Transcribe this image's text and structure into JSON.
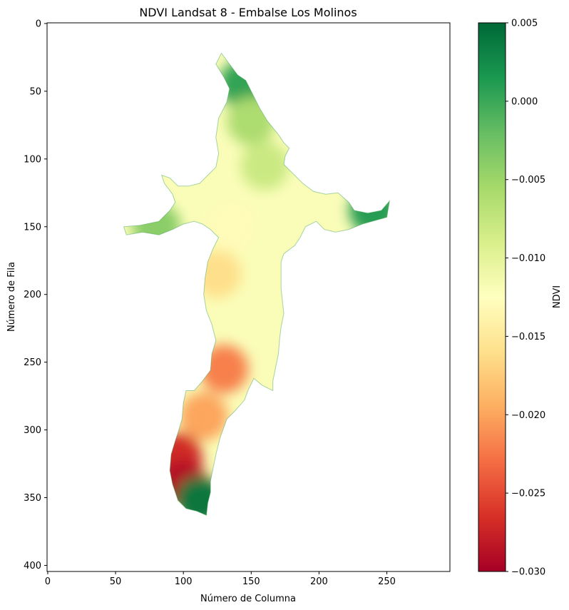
{
  "chart_data": {
    "type": "heatmap",
    "title": "NDVI Landsat 8 - Embalse Los Molinos",
    "xlabel": "Número de Columna",
    "ylabel": "Número de Fila",
    "xlim": [
      -0.5,
      296.5
    ],
    "ylim": [
      404.5,
      -0.5
    ],
    "x_ticks": [
      0,
      50,
      100,
      150,
      200,
      250
    ],
    "y_ticks": [
      0,
      50,
      100,
      150,
      200,
      250,
      300,
      350,
      400
    ],
    "grid": false,
    "colormap": "RdYlGn",
    "colorbar": {
      "label": "NDVI",
      "range": [
        -0.03,
        0.005
      ],
      "ticks": [
        0.005,
        0.0,
        -0.005,
        -0.01,
        -0.015,
        -0.02,
        -0.025,
        -0.03
      ],
      "tick_labels": [
        "0.005",
        "0.000",
        "−0.005",
        "−0.010",
        "−0.015",
        "−0.020",
        "−0.025",
        "−0.030"
      ]
    },
    "colormap_stops": [
      "#a50026",
      "#d73027",
      "#f46d43",
      "#fdae61",
      "#fee08b",
      "#ffffbf",
      "#d9ef8b",
      "#a6d96a",
      "#66bd63",
      "#1a9850",
      "#006837"
    ],
    "water_body_outline": [
      [
        128,
        22
      ],
      [
        134,
        30
      ],
      [
        140,
        38
      ],
      [
        146,
        42
      ],
      [
        150,
        50
      ],
      [
        156,
        62
      ],
      [
        162,
        72
      ],
      [
        170,
        82
      ],
      [
        174,
        88
      ],
      [
        178,
        92
      ],
      [
        175,
        98
      ],
      [
        174,
        104
      ],
      [
        180,
        110
      ],
      [
        188,
        118
      ],
      [
        196,
        124
      ],
      [
        205,
        126
      ],
      [
        214,
        125
      ],
      [
        222,
        132
      ],
      [
        226,
        138
      ],
      [
        236,
        140
      ],
      [
        246,
        138
      ],
      [
        252,
        131
      ],
      [
        250,
        143
      ],
      [
        232,
        148
      ],
      [
        222,
        152
      ],
      [
        212,
        154
      ],
      [
        204,
        152
      ],
      [
        198,
        146
      ],
      [
        190,
        150
      ],
      [
        186,
        158
      ],
      [
        182,
        164
      ],
      [
        174,
        170
      ],
      [
        172,
        176
      ],
      [
        172,
        196
      ],
      [
        174,
        214
      ],
      [
        172,
        224
      ],
      [
        171,
        232
      ],
      [
        170,
        244
      ],
      [
        168,
        254
      ],
      [
        166,
        264
      ],
      [
        166,
        271
      ],
      [
        158,
        267
      ],
      [
        152,
        262
      ],
      [
        148,
        270
      ],
      [
        145,
        278
      ],
      [
        138,
        286
      ],
      [
        132,
        292
      ],
      [
        127,
        306
      ],
      [
        124,
        318
      ],
      [
        122,
        328
      ],
      [
        120,
        338
      ],
      [
        120,
        346
      ],
      [
        118,
        354
      ],
      [
        117,
        363
      ],
      [
        110,
        360
      ],
      [
        102,
        358
      ],
      [
        96,
        352
      ],
      [
        92,
        340
      ],
      [
        90,
        330
      ],
      [
        91,
        318
      ],
      [
        94,
        308
      ],
      [
        96,
        302
      ],
      [
        99,
        292
      ],
      [
        100,
        280
      ],
      [
        102,
        271
      ],
      [
        108,
        271
      ],
      [
        114,
        264
      ],
      [
        120,
        256
      ],
      [
        121,
        244
      ],
      [
        124,
        234
      ],
      [
        121,
        222
      ],
      [
        117,
        212
      ],
      [
        115,
        200
      ],
      [
        116,
        188
      ],
      [
        118,
        176
      ],
      [
        122,
        166
      ],
      [
        126,
        158
      ],
      [
        120,
        152
      ],
      [
        114,
        148
      ],
      [
        108,
        146
      ],
      [
        100,
        148
      ],
      [
        92,
        152
      ],
      [
        82,
        156
      ],
      [
        70,
        154
      ],
      [
        58,
        156
      ],
      [
        56,
        150
      ],
      [
        68,
        149
      ],
      [
        82,
        146
      ],
      [
        90,
        138
      ],
      [
        94,
        132
      ],
      [
        92,
        126
      ],
      [
        86,
        118
      ],
      [
        84,
        112
      ],
      [
        90,
        114
      ],
      [
        96,
        120
      ],
      [
        104,
        120
      ],
      [
        112,
        118
      ],
      [
        118,
        112
      ],
      [
        124,
        106
      ],
      [
        126,
        96
      ],
      [
        124,
        84
      ],
      [
        126,
        70
      ],
      [
        132,
        58
      ],
      [
        134,
        48
      ],
      [
        130,
        40
      ],
      [
        124,
        30
      ]
    ],
    "ndvi_zones": [
      {
        "row": 45,
        "col": 144,
        "ndvi": 0.0005
      },
      {
        "row": 72,
        "col": 150,
        "ndvi": -0.006
      },
      {
        "row": 105,
        "col": 160,
        "ndvi": -0.008
      },
      {
        "row": 138,
        "col": 240,
        "ndvi": 0.001
      },
      {
        "row": 150,
        "col": 80,
        "ndvi": -0.004
      },
      {
        "row": 150,
        "col": 135,
        "ndvi": -0.013
      },
      {
        "row": 185,
        "col": 125,
        "ndvi": -0.016
      },
      {
        "row": 210,
        "col": 155,
        "ndvi": -0.012
      },
      {
        "row": 255,
        "col": 130,
        "ndvi": -0.022
      },
      {
        "row": 290,
        "col": 115,
        "ndvi": -0.02
      },
      {
        "row": 320,
        "col": 96,
        "ndvi": -0.027
      },
      {
        "row": 340,
        "col": 100,
        "ndvi": -0.029
      },
      {
        "row": 352,
        "col": 112,
        "ndvi": 0.004
      }
    ]
  }
}
